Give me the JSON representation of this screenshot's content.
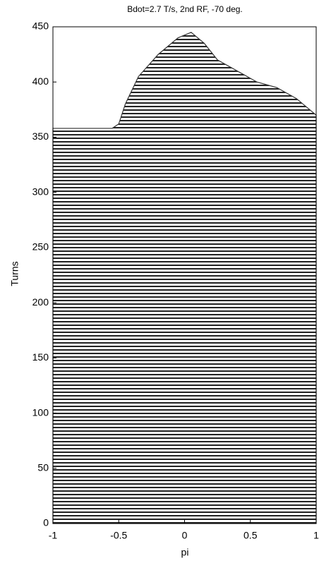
{
  "chart_data": {
    "type": "waterfall",
    "title": "Bdot=2.7 T/s, 2nd RF, -70 deg.",
    "xlabel": "pi",
    "ylabel": "Turns",
    "x": [
      -1,
      -0.55,
      -0.5,
      -0.45,
      -0.35,
      -0.2,
      -0.05,
      0.05,
      0.15,
      0.25,
      0.4,
      0.55,
      0.7,
      0.85,
      1
    ],
    "values": [
      358,
      358,
      362,
      380,
      405,
      425,
      440,
      445,
      435,
      420,
      410,
      400,
      395,
      385,
      370
    ],
    "color": "#333333",
    "xlim": [
      -1,
      1
    ],
    "xticks": [
      -1,
      -0.5,
      0,
      0.5,
      1
    ],
    "ylim": [
      0,
      450
    ],
    "yticks": [
      0,
      50,
      100,
      150,
      200,
      250,
      300,
      350,
      400,
      450
    ]
  }
}
